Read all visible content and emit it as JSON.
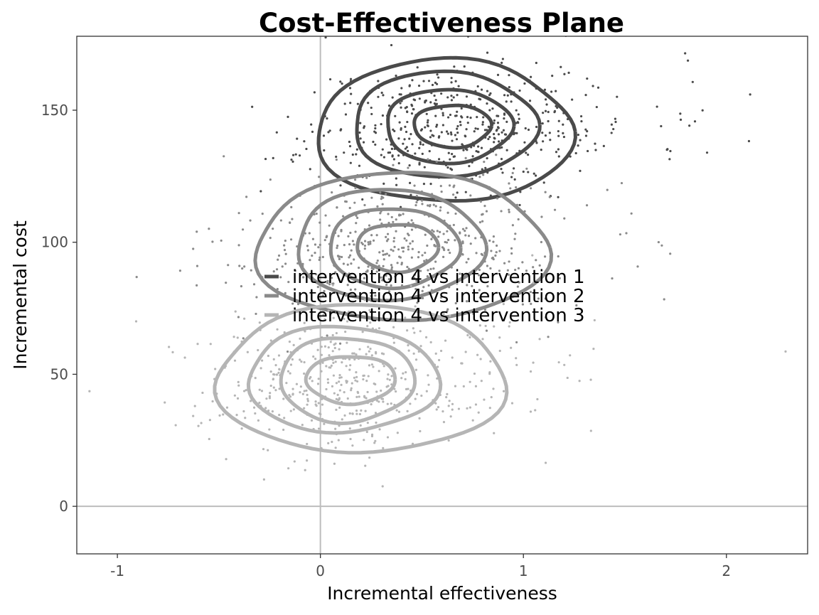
{
  "chart_data": {
    "type": "scatter",
    "title": "Cost-Effectiveness Plane",
    "xlabel": "Incremental effectiveness",
    "ylabel": "Incremental cost",
    "xlim": [
      -1.2,
      2.4
    ],
    "ylim": [
      -18,
      178
    ],
    "x_ticks": [
      -1,
      0,
      1,
      2
    ],
    "y_ticks": [
      0,
      50,
      100,
      150
    ],
    "x_tick_labels": [
      "-1",
      "0",
      "1",
      "2"
    ],
    "y_tick_labels": [
      "0",
      "50",
      "100",
      "150"
    ],
    "reference_lines": {
      "x": 0,
      "y": 0,
      "color": "#bdbdbd"
    },
    "grid": false,
    "legend_position": "center",
    "series": [
      {
        "name": "intervention 4 vs intervention 1",
        "color": "#4a4a4a",
        "center": {
          "x": 0.65,
          "y": 144
        },
        "spread": {
          "x": 0.35,
          "y": 13
        },
        "n_points": 520,
        "seed": 11,
        "contours": [
          {
            "rx": 0.19,
            "ry": 8,
            "dx": 0,
            "dy": 0
          },
          {
            "rx": 0.31,
            "ry": 14,
            "dx": -0.02,
            "dy": 0
          },
          {
            "rx": 0.45,
            "ry": 20,
            "dx": -0.04,
            "dy": 0.5
          },
          {
            "rx": 0.63,
            "ry": 27,
            "dx": -0.04,
            "dy": -2
          }
        ]
      },
      {
        "name": "intervention 4 vs intervention 2",
        "color": "#8a8a8a",
        "center": {
          "x": 0.38,
          "y": 98
        },
        "spread": {
          "x": 0.36,
          "y": 14
        },
        "n_points": 520,
        "seed": 22,
        "contours": [
          {
            "rx": 0.2,
            "ry": 9,
            "dx": 0,
            "dy": 0
          },
          {
            "rx": 0.32,
            "ry": 15,
            "dx": -0.02,
            "dy": 0
          },
          {
            "rx": 0.46,
            "ry": 21,
            "dx": -0.04,
            "dy": 1
          },
          {
            "rx": 0.72,
            "ry": 28,
            "dx": 0.02,
            "dy": 0
          }
        ]
      },
      {
        "name": "intervention 4 vs intervention 3",
        "color": "#b5b5b5",
        "center": {
          "x": 0.15,
          "y": 48
        },
        "spread": {
          "x": 0.36,
          "y": 14
        },
        "n_points": 520,
        "seed": 33,
        "contours": [
          {
            "rx": 0.22,
            "ry": 9,
            "dx": 0,
            "dy": 0
          },
          {
            "rx": 0.33,
            "ry": 16,
            "dx": -0.02,
            "dy": 0
          },
          {
            "rx": 0.47,
            "ry": 20,
            "dx": -0.04,
            "dy": 0
          },
          {
            "rx": 0.71,
            "ry": 28,
            "dx": 0.05,
            "dy": 0
          }
        ]
      }
    ]
  }
}
